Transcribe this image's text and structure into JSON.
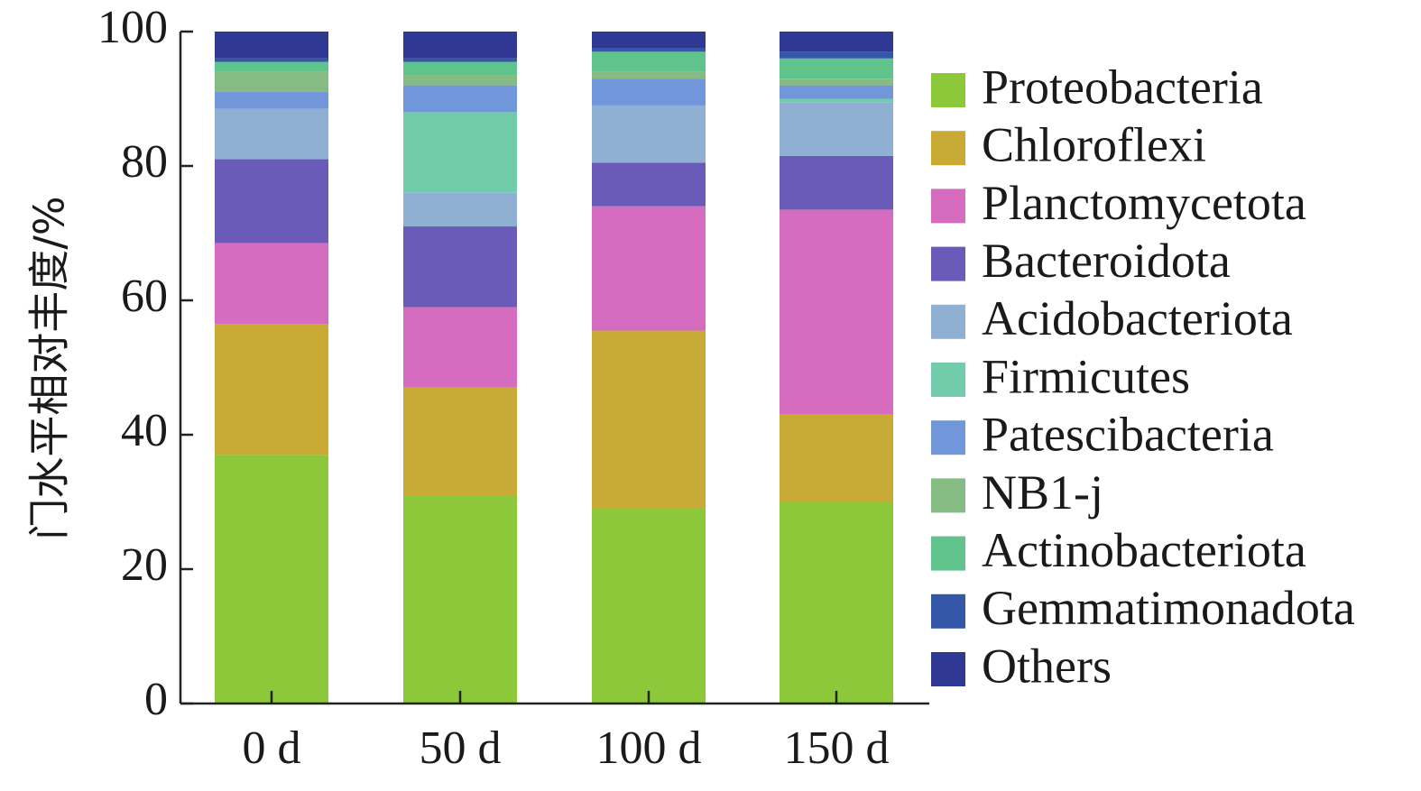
{
  "chart_data": {
    "type": "bar",
    "stacked": true,
    "ylabel": "门水平相对丰度/%",
    "xlabel": "",
    "ylim": [
      0,
      100
    ],
    "yticks": [
      0,
      20,
      40,
      60,
      80,
      100
    ],
    "categories": [
      "0 d",
      "50 d",
      "100 d",
      "150 d"
    ],
    "series": [
      {
        "name": "Proteobacteria",
        "color": "#8dc83a",
        "values": [
          37,
          31,
          29,
          30
        ]
      },
      {
        "name": "Chloroflexi",
        "color": "#c8aa35",
        "values": [
          19.5,
          16,
          26.5,
          13
        ]
      },
      {
        "name": "Planctomycetota",
        "color": "#d66cbf",
        "values": [
          12,
          12,
          18.5,
          30.5
        ]
      },
      {
        "name": "Bacteroidota",
        "color": "#6a5bb8",
        "values": [
          12.5,
          12,
          6.5,
          8
        ]
      },
      {
        "name": "Acidobacteriota",
        "color": "#8fb0d2",
        "values": [
          7.5,
          5,
          8.5,
          8
        ]
      },
      {
        "name": "Firmicutes",
        "color": "#72ccab",
        "values": [
          0,
          12,
          0,
          0.5
        ]
      },
      {
        "name": "Patescibacteria",
        "color": "#7196da",
        "values": [
          2.5,
          4,
          4,
          2
        ]
      },
      {
        "name": "NB1-j",
        "color": "#86bb84",
        "values": [
          3,
          1.5,
          1,
          1
        ]
      },
      {
        "name": "Actinobacteriota",
        "color": "#5fc38b",
        "values": [
          1.5,
          2,
          3,
          3
        ]
      },
      {
        "name": "Gemmatimonadota",
        "color": "#3557a8",
        "values": [
          0.5,
          0.5,
          0.5,
          1
        ]
      },
      {
        "name": "Others",
        "color": "#2f3893",
        "values": [
          4,
          4,
          2.5,
          3
        ]
      }
    ]
  }
}
